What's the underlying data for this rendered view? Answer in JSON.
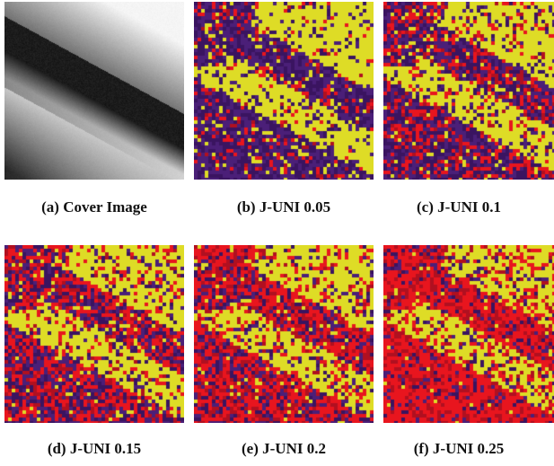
{
  "figure": {
    "panels": [
      {
        "id": "a",
        "caption": "(a) Cover Image",
        "kind": "cover"
      },
      {
        "id": "b",
        "caption": "(b) J-UNI 0.05",
        "kind": "map",
        "red_fraction": 0.05
      },
      {
        "id": "c",
        "caption": "(c) J-UNI 0.1",
        "kind": "map",
        "red_fraction": 0.1
      },
      {
        "id": "d",
        "caption": "(d) J-UNI 0.15",
        "kind": "map",
        "red_fraction": 0.15
      },
      {
        "id": "e",
        "caption": "(e) J-UNI 0.2",
        "kind": "map",
        "red_fraction": 0.2
      },
      {
        "id": "f",
        "caption": "(f) J-UNI 0.25",
        "kind": "map",
        "red_fraction": 0.25
      }
    ]
  },
  "colors": {
    "purple": "#4b1f78",
    "dark_purple": "#3a1460",
    "yellow": "#dedc26",
    "red": "#e8151e",
    "dark_red": "#b01020"
  }
}
